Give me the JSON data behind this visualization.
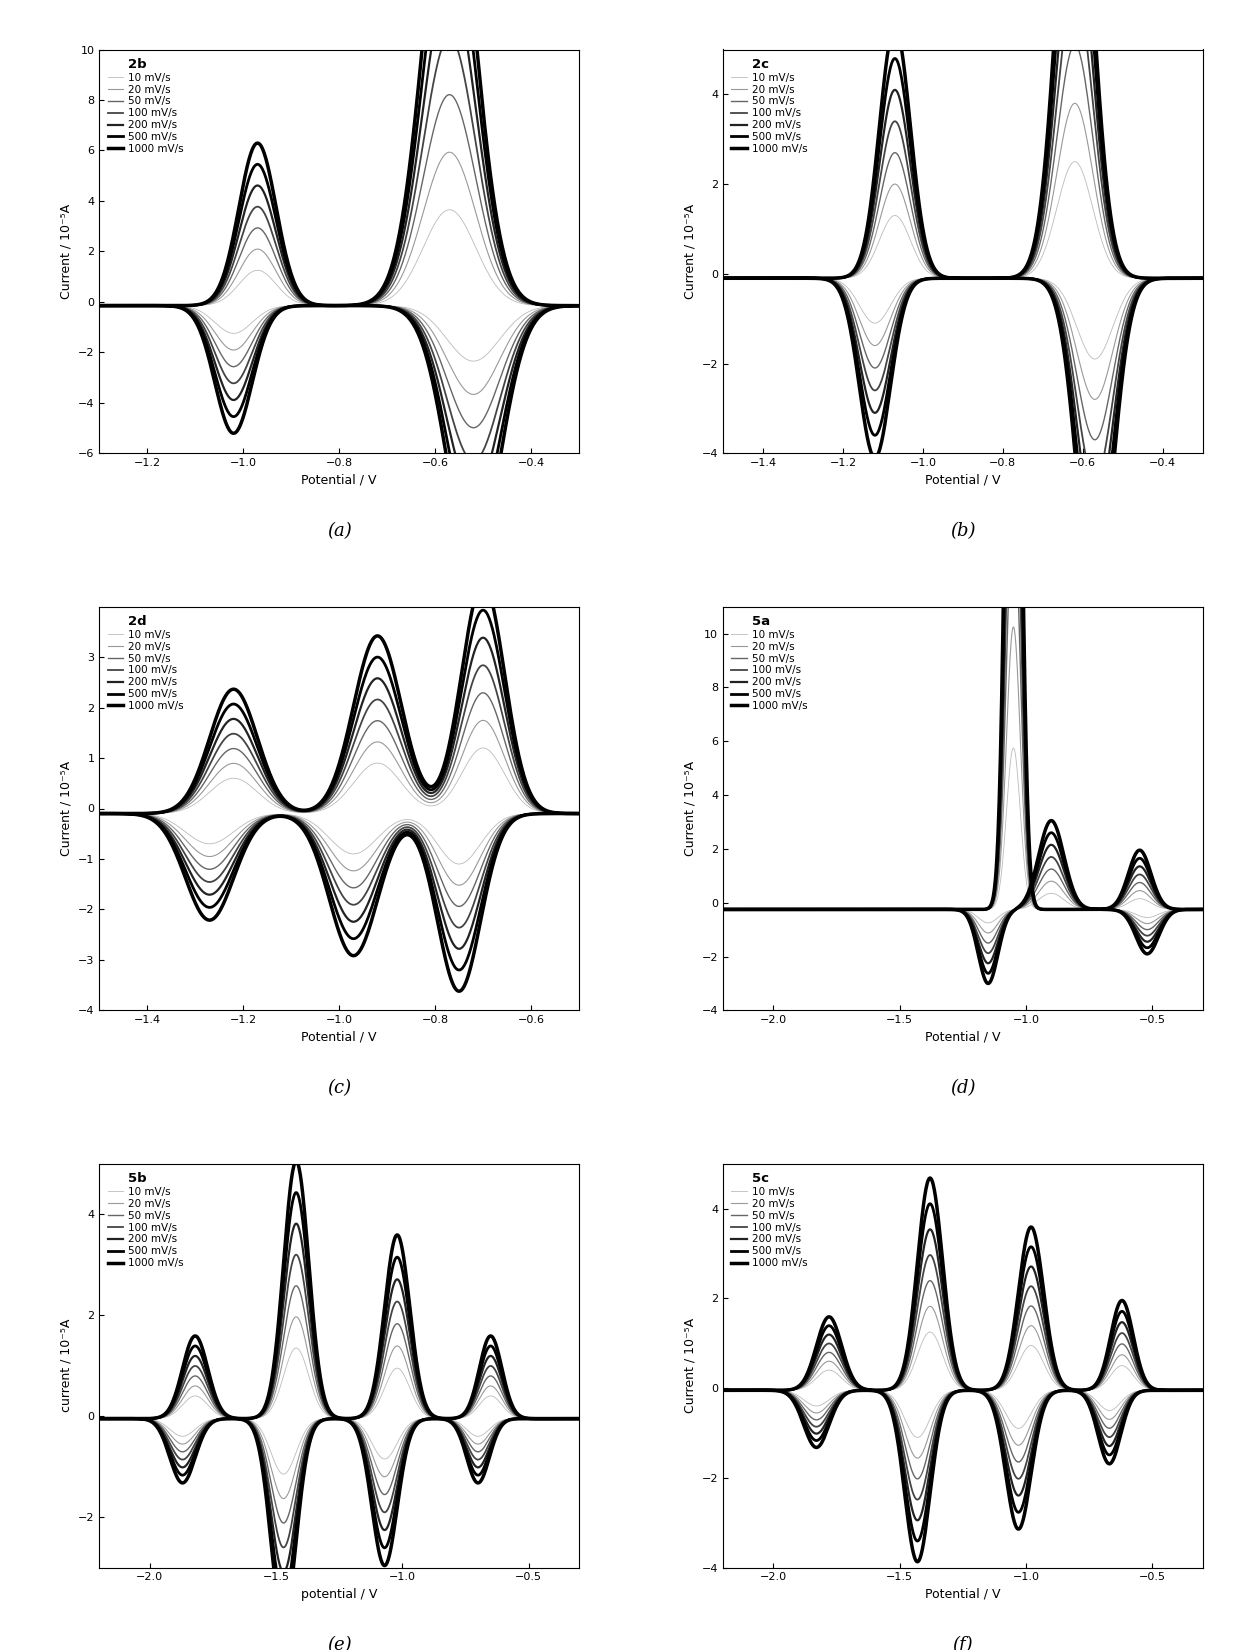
{
  "panels": [
    {
      "label": "2b",
      "panel_letter": "(a)",
      "ylabel": "Current / 10⁻⁵A",
      "xlabel": "Potential / V",
      "xlim": [
        -1.3,
        -0.3
      ],
      "ylim": [
        -6,
        10
      ],
      "yticks": [
        -6,
        -4,
        -2,
        0,
        2,
        4,
        6,
        8,
        10
      ],
      "xticks": [
        -1.2,
        -1.0,
        -0.8,
        -0.6,
        -0.4
      ],
      "scan_rates": [
        "10 mV/s",
        "20 mV/s",
        "50 mV/s",
        "100 mV/s",
        "200 mV/s",
        "500 mV/s",
        "1000 mV/s"
      ],
      "lw_list": [
        0.6,
        0.8,
        1.0,
        1.3,
        1.6,
        2.0,
        2.5
      ],
      "color_list": [
        "#bbbbbb",
        "#999999",
        "#666666",
        "#444444",
        "#222222",
        "#000000",
        "#000000"
      ]
    },
    {
      "label": "2c",
      "panel_letter": "(b)",
      "ylabel": "Current / 10⁻⁵A",
      "xlabel": "Potential / V",
      "xlim": [
        -1.5,
        -0.3
      ],
      "ylim": [
        -4,
        5
      ],
      "yticks": [
        -4,
        -2,
        0,
        2,
        4
      ],
      "xticks": [
        -1.4,
        -1.2,
        -1.0,
        -0.8,
        -0.6,
        -0.4
      ],
      "scan_rates": [
        "10 mV/s",
        "20 mV/s",
        "50 mV/s",
        "100 mV/s",
        "200 mV/s",
        "500 mV/s",
        "1000 mV/s"
      ],
      "lw_list": [
        0.6,
        0.8,
        1.0,
        1.3,
        1.6,
        2.0,
        2.5
      ],
      "color_list": [
        "#bbbbbb",
        "#999999",
        "#666666",
        "#444444",
        "#222222",
        "#000000",
        "#000000"
      ]
    },
    {
      "label": "2d",
      "panel_letter": "(c)",
      "ylabel": "Current / 10⁻⁵A",
      "xlabel": "Potential / V",
      "xlim": [
        -1.5,
        -0.5
      ],
      "ylim": [
        -4,
        4
      ],
      "yticks": [
        -4,
        -3,
        -2,
        -1,
        0,
        1,
        2,
        3
      ],
      "xticks": [
        -1.4,
        -1.2,
        -1.0,
        -0.8,
        -0.6
      ],
      "scan_rates": [
        "10 mV/s",
        "20 mV/s",
        "50 mV/s",
        "100 mV/s",
        "200 mV/s",
        "500 mV/s",
        "1000 mV/s"
      ],
      "lw_list": [
        0.6,
        0.8,
        1.0,
        1.3,
        1.6,
        2.0,
        2.5
      ],
      "color_list": [
        "#bbbbbb",
        "#999999",
        "#666666",
        "#444444",
        "#222222",
        "#000000",
        "#000000"
      ]
    },
    {
      "label": "5a",
      "panel_letter": "(d)",
      "ylabel": "Current / 10⁻⁵A",
      "xlabel": "Potential / V",
      "xlim": [
        -2.2,
        -0.3
      ],
      "ylim": [
        -4,
        11
      ],
      "yticks": [
        -4,
        -2,
        0,
        2,
        4,
        6,
        8,
        10
      ],
      "xticks": [
        -2.0,
        -1.5,
        -1.0,
        -0.5
      ],
      "scan_rates": [
        "10 mV/s",
        "20 mV/s",
        "50 mV/s",
        "100 mV/s",
        "200 mV/s",
        "500 mV/s",
        "1000 mV/s"
      ],
      "lw_list": [
        0.6,
        0.8,
        1.0,
        1.3,
        1.6,
        2.0,
        2.5
      ],
      "color_list": [
        "#bbbbbb",
        "#999999",
        "#666666",
        "#444444",
        "#222222",
        "#000000",
        "#000000"
      ]
    },
    {
      "label": "5b",
      "panel_letter": "(e)",
      "ylabel": "current / 10⁻⁵A",
      "xlabel": "potential / V",
      "xlim": [
        -2.2,
        -0.3
      ],
      "ylim": [
        -3,
        5
      ],
      "yticks": [
        -2,
        0,
        2,
        4
      ],
      "xticks": [
        -2.0,
        -1.5,
        -1.0,
        -0.5
      ],
      "scan_rates": [
        "10 mV/s",
        "20 mV/s",
        "50 mV/s",
        "100 mV/s",
        "200 mV/s",
        "500 mV/s",
        "1000 mV/s"
      ],
      "lw_list": [
        0.6,
        0.8,
        1.0,
        1.3,
        1.6,
        2.0,
        2.5
      ],
      "color_list": [
        "#bbbbbb",
        "#999999",
        "#666666",
        "#444444",
        "#222222",
        "#000000",
        "#000000"
      ]
    },
    {
      "label": "5c",
      "panel_letter": "(f)",
      "ylabel": "Current / 10⁻⁵A",
      "xlabel": "Potential / V",
      "xlim": [
        -2.2,
        -0.3
      ],
      "ylim": [
        -4,
        5
      ],
      "yticks": [
        -4,
        -2,
        0,
        2,
        4
      ],
      "xticks": [
        -2.0,
        -1.5,
        -1.0,
        -0.5
      ],
      "scan_rates": [
        "10 mV/s",
        "20 mV/s",
        "50 mV/s",
        "100 mV/s",
        "200 mV/s",
        "500 mV/s",
        "1000 mV/s"
      ],
      "lw_list": [
        0.6,
        0.8,
        1.0,
        1.3,
        1.6,
        2.0,
        2.5
      ],
      "color_list": [
        "#bbbbbb",
        "#999999",
        "#666666",
        "#444444",
        "#222222",
        "#000000",
        "#000000"
      ]
    }
  ],
  "figure_bg": "#ffffff",
  "axes_bg": "#ffffff"
}
